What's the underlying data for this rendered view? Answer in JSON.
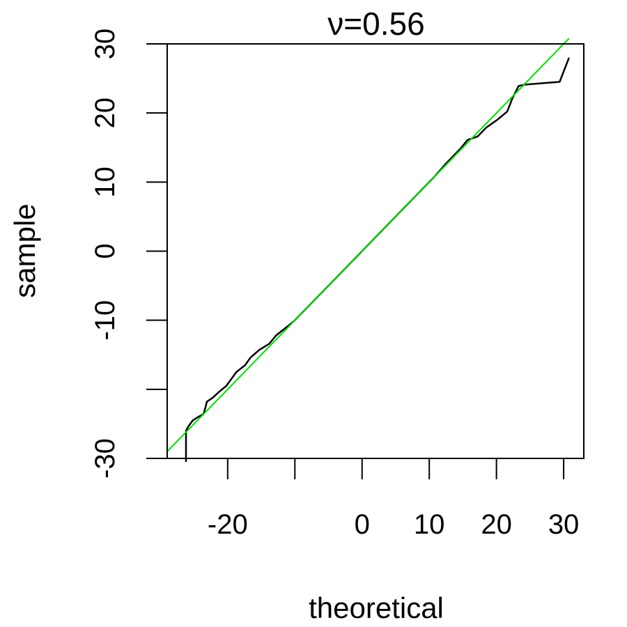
{
  "chart_data": {
    "type": "line",
    "title": "ν=0.56",
    "xlabel": "theoretical",
    "ylabel": "sample",
    "xlim": [
      -29,
      33
    ],
    "ylim": [
      -30,
      30
    ],
    "x_ticks": [
      -30,
      -20,
      -10,
      0,
      10,
      20,
      30
    ],
    "x_tick_labels": [
      "",
      "-20",
      "",
      "0",
      "10",
      "20",
      "30"
    ],
    "y_ticks": [
      -30,
      -20,
      -10,
      0,
      10,
      20,
      30
    ],
    "y_tick_labels": [
      "-30",
      "",
      "-10",
      "0",
      "10",
      "20",
      "30"
    ],
    "grid": false,
    "series": [
      {
        "color": "#000000",
        "x": [
          -26.2,
          -26.2,
          -25.8,
          -25.2,
          -24.4,
          -23.6,
          -23.3,
          -23.1,
          -22.2,
          -21.2,
          -20.2,
          -19.6,
          -18.7,
          -17.4,
          -16.6,
          -15.3,
          -13.8,
          -12.8,
          -10.2,
          -7.2,
          -5,
          0,
          5,
          10,
          10.7,
          12.5,
          14.7,
          15.7,
          17.2,
          18.5,
          20.1,
          21.6,
          22.4,
          23.3,
          24.2,
          29.4,
          30.8
        ],
        "y": [
          -30.5,
          -26,
          -25.3,
          -24.5,
          -24,
          -23.6,
          -22.6,
          -21.8,
          -21.2,
          -20.3,
          -19.5,
          -18.7,
          -17.5,
          -16.5,
          -15.4,
          -14.3,
          -13.4,
          -12.2,
          -10.2,
          -7.2,
          -5,
          0,
          5,
          10,
          10.7,
          12.7,
          14.9,
          16.1,
          16.6,
          17.9,
          19,
          20.2,
          22.2,
          23.9,
          24.1,
          24.5,
          28
        ]
      },
      {
        "color": "#00dd00",
        "x": [
          -29,
          30.8
        ],
        "y": [
          -29,
          30.8
        ]
      }
    ]
  }
}
